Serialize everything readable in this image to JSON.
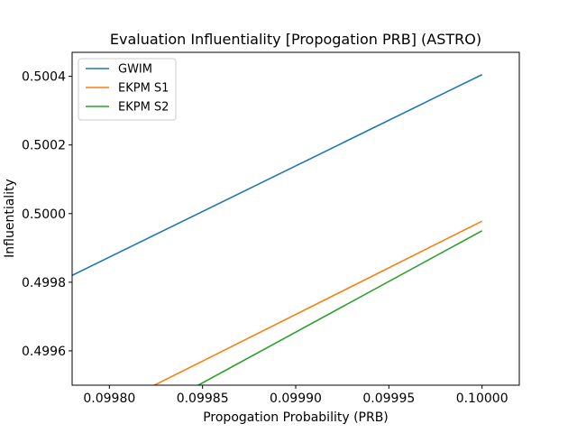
{
  "chart_data": {
    "type": "line",
    "title": "Evaluation Influentiality [Propogation PRB] (ASTRO)",
    "xlabel": "Propogation Probability (PRB)",
    "ylabel": "Influentiality",
    "xlim": [
      0.09978,
      0.10002
    ],
    "ylim": [
      0.4995,
      0.50047
    ],
    "xticks": [
      0.0998,
      0.09985,
      0.0999,
      0.09995,
      0.1
    ],
    "xtick_labels": [
      "0.09980",
      "0.09985",
      "0.09990",
      "0.09995",
      "0.10000"
    ],
    "yticks": [
      0.4996,
      0.4998,
      0.5,
      0.5002,
      0.5004
    ],
    "ytick_labels": [
      "0.4996",
      "0.4998",
      "0.5000",
      "0.5002",
      "0.5004"
    ],
    "grid": false,
    "legend_position": "top-left",
    "series": [
      {
        "name": "GWIM",
        "color": "#1f77b4",
        "x": [
          0.09978,
          0.1
        ],
        "y": [
          0.49982,
          0.500405
        ]
      },
      {
        "name": "EKPM S1",
        "color": "#ff7f0e",
        "x": [
          0.09978,
          0.1
        ],
        "y": [
          0.49938,
          0.499978
        ]
      },
      {
        "name": "EKPM S2",
        "color": "#2ca02c",
        "x": [
          0.09978,
          0.1
        ],
        "y": [
          0.4993,
          0.49995
        ]
      }
    ]
  }
}
